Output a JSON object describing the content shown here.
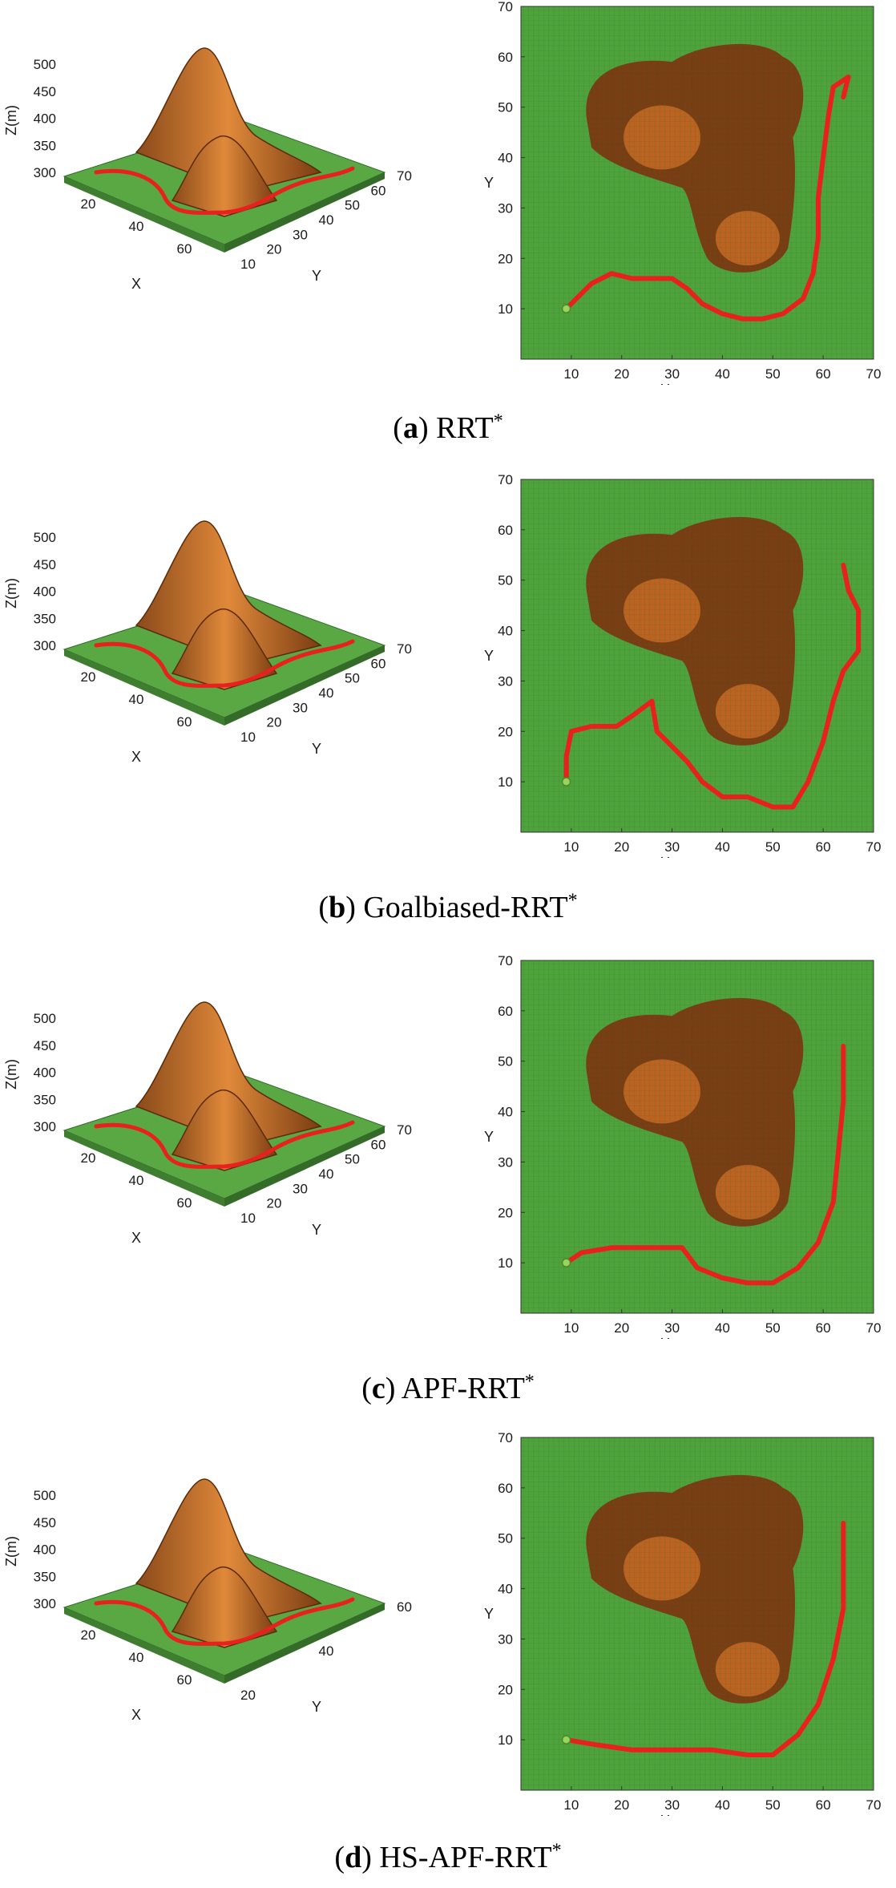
{
  "panels": [
    {
      "id": "a",
      "caption_letter": "a",
      "caption_text": "RRT",
      "caption_sup": "*",
      "chart_data": [
        {
          "type": "surface3d",
          "zlabel": "Z(m)",
          "xlabel": "X",
          "ylabel": "Y",
          "z_ticks": [
            300,
            350,
            400,
            450,
            500
          ],
          "x_ticks": [
            20,
            40,
            60
          ],
          "y_ticks": [
            10,
            20,
            30,
            40,
            50,
            60,
            70
          ]
        },
        {
          "type": "line",
          "xlabel": "X",
          "ylabel": "Y",
          "xlim": [
            0,
            70
          ],
          "ylim": [
            0,
            70
          ],
          "x_ticks": [
            10,
            20,
            30,
            40,
            50,
            60,
            70
          ],
          "y_ticks": [
            10,
            20,
            30,
            40,
            50,
            60,
            70
          ],
          "path": [
            [
              9,
              10
            ],
            [
              11,
              12
            ],
            [
              14,
              15
            ],
            [
              18,
              17
            ],
            [
              22,
              16
            ],
            [
              26,
              16
            ],
            [
              30,
              16
            ],
            [
              33,
              14
            ],
            [
              36,
              11
            ],
            [
              40,
              9
            ],
            [
              44,
              8
            ],
            [
              48,
              8
            ],
            [
              52,
              9
            ],
            [
              56,
              12
            ],
            [
              58,
              17
            ],
            [
              59,
              24
            ],
            [
              59,
              32
            ],
            [
              60,
              40
            ],
            [
              61,
              48
            ],
            [
              62,
              54
            ],
            [
              65,
              56
            ],
            [
              64,
              52
            ]
          ]
        }
      ]
    },
    {
      "id": "b",
      "caption_letter": "b",
      "caption_text": "Goalbiased-RRT",
      "caption_sup": "*",
      "chart_data": [
        {
          "type": "surface3d",
          "zlabel": "Z(m)",
          "xlabel": "X",
          "ylabel": "Y",
          "z_ticks": [
            300,
            350,
            400,
            450,
            500
          ],
          "x_ticks": [
            20,
            40,
            60
          ],
          "y_ticks": [
            10,
            20,
            30,
            40,
            50,
            60,
            70
          ]
        },
        {
          "type": "line",
          "xlabel": "X",
          "ylabel": "Y",
          "xlim": [
            0,
            70
          ],
          "ylim": [
            0,
            70
          ],
          "x_ticks": [
            10,
            20,
            30,
            40,
            50,
            60,
            70
          ],
          "y_ticks": [
            10,
            20,
            30,
            40,
            50,
            60,
            70
          ],
          "path": [
            [
              9,
              10
            ],
            [
              9,
              15
            ],
            [
              10,
              20
            ],
            [
              14,
              21
            ],
            [
              19,
              21
            ],
            [
              22,
              23
            ],
            [
              26,
              26
            ],
            [
              27,
              20
            ],
            [
              30,
              17
            ],
            [
              33,
              14
            ],
            [
              36,
              10
            ],
            [
              40,
              7
            ],
            [
              45,
              7
            ],
            [
              50,
              5
            ],
            [
              54,
              5
            ],
            [
              57,
              10
            ],
            [
              60,
              18
            ],
            [
              62,
              26
            ],
            [
              64,
              32
            ],
            [
              67,
              36
            ],
            [
              67,
              44
            ],
            [
              65,
              48
            ],
            [
              64,
              53
            ]
          ]
        }
      ]
    },
    {
      "id": "c",
      "caption_letter": "c",
      "caption_text": "APF-RRT",
      "caption_sup": "*",
      "chart_data": [
        {
          "type": "surface3d",
          "zlabel": "Z(m)",
          "xlabel": "X",
          "ylabel": "Y",
          "z_ticks": [
            300,
            350,
            400,
            450,
            500
          ],
          "x_ticks": [
            20,
            40,
            60
          ],
          "y_ticks": [
            10,
            20,
            30,
            40,
            50,
            60,
            70
          ]
        },
        {
          "type": "line",
          "xlabel": "X",
          "ylabel": "Y",
          "xlim": [
            0,
            70
          ],
          "ylim": [
            0,
            70
          ],
          "x_ticks": [
            10,
            20,
            30,
            40,
            50,
            60,
            70
          ],
          "y_ticks": [
            10,
            20,
            30,
            40,
            50,
            60,
            70
          ],
          "path": [
            [
              9,
              10
            ],
            [
              12,
              12
            ],
            [
              18,
              13
            ],
            [
              25,
              13
            ],
            [
              32,
              13
            ],
            [
              35,
              9
            ],
            [
              40,
              7
            ],
            [
              45,
              6
            ],
            [
              50,
              6
            ],
            [
              55,
              9
            ],
            [
              59,
              14
            ],
            [
              62,
              22
            ],
            [
              63,
              32
            ],
            [
              64,
              42
            ],
            [
              64,
              53
            ]
          ]
        }
      ]
    },
    {
      "id": "d",
      "caption_letter": "d",
      "caption_text": "HS-APF-RRT",
      "caption_sup": "*",
      "chart_data": [
        {
          "type": "surface3d",
          "zlabel": "Z(m)",
          "xlabel": "X",
          "ylabel": "Y",
          "z_ticks": [
            300,
            350,
            400,
            450,
            500
          ],
          "x_ticks": [
            20,
            40,
            60
          ],
          "y_ticks": [
            20,
            40,
            60
          ]
        },
        {
          "type": "line",
          "xlabel": "X",
          "ylabel": "Y",
          "xlim": [
            0,
            70
          ],
          "ylim": [
            0,
            70
          ],
          "x_ticks": [
            10,
            20,
            30,
            40,
            50,
            60,
            70
          ],
          "y_ticks": [
            10,
            20,
            30,
            40,
            50,
            60,
            70
          ],
          "path": [
            [
              9,
              10
            ],
            [
              15,
              9
            ],
            [
              22,
              8
            ],
            [
              30,
              8
            ],
            [
              38,
              8
            ],
            [
              45,
              7
            ],
            [
              50,
              7
            ],
            [
              55,
              11
            ],
            [
              59,
              17
            ],
            [
              62,
              26
            ],
            [
              64,
              36
            ],
            [
              64,
              45
            ],
            [
              64,
              53
            ]
          ]
        }
      ]
    }
  ]
}
